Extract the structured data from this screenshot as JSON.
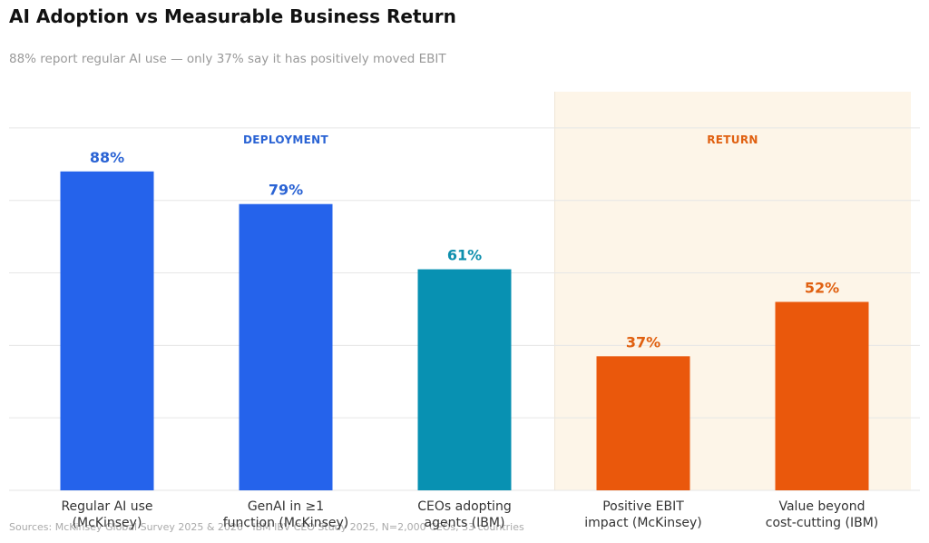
{
  "title": "AI Adoption vs Measurable Business Return",
  "subtitle": "88% report regular AI use — only 37% say it has positively moved EBIT",
  "source": "Sources: McKinsey Global Survey 2025 & 2026 · IBM IBV CEO Study 2025, N=2,000 CEOs, 33 countries",
  "chart_data": {
    "type": "bar",
    "ylim": [
      0,
      110
    ],
    "grid": true,
    "groups": [
      {
        "label": "DEPLOYMENT",
        "color": "#2A63D4",
        "categories": [
          0,
          1,
          2
        ]
      },
      {
        "label": "RETURN",
        "color": "#E06010",
        "categories": [
          3,
          4
        ],
        "shaded": true,
        "shade_color": "#FDF5E8"
      }
    ],
    "categories": [
      {
        "lines": [
          "Regular AI use",
          "(McKinsey)"
        ],
        "value": 88,
        "label": "88%",
        "color": "#2563EB",
        "label_color": "#2A63D4"
      },
      {
        "lines": [
          "GenAI in ≥1",
          "function (McKinsey)"
        ],
        "value": 79,
        "label": "79%",
        "color": "#2563EB",
        "label_color": "#2A63D4"
      },
      {
        "lines": [
          "CEOs adopting",
          "agents (IBM)"
        ],
        "value": 61,
        "label": "61%",
        "color": "#0891B2",
        "label_color": "#0E8FAD"
      },
      {
        "lines": [
          "Positive EBIT",
          "impact (McKinsey)"
        ],
        "value": 37,
        "label": "37%",
        "color": "#EA580C",
        "label_color": "#E06010"
      },
      {
        "lines": [
          "Value beyond",
          "cost-cutting (IBM)"
        ],
        "value": 52,
        "label": "52%",
        "color": "#EA580C",
        "label_color": "#E06010"
      }
    ]
  }
}
